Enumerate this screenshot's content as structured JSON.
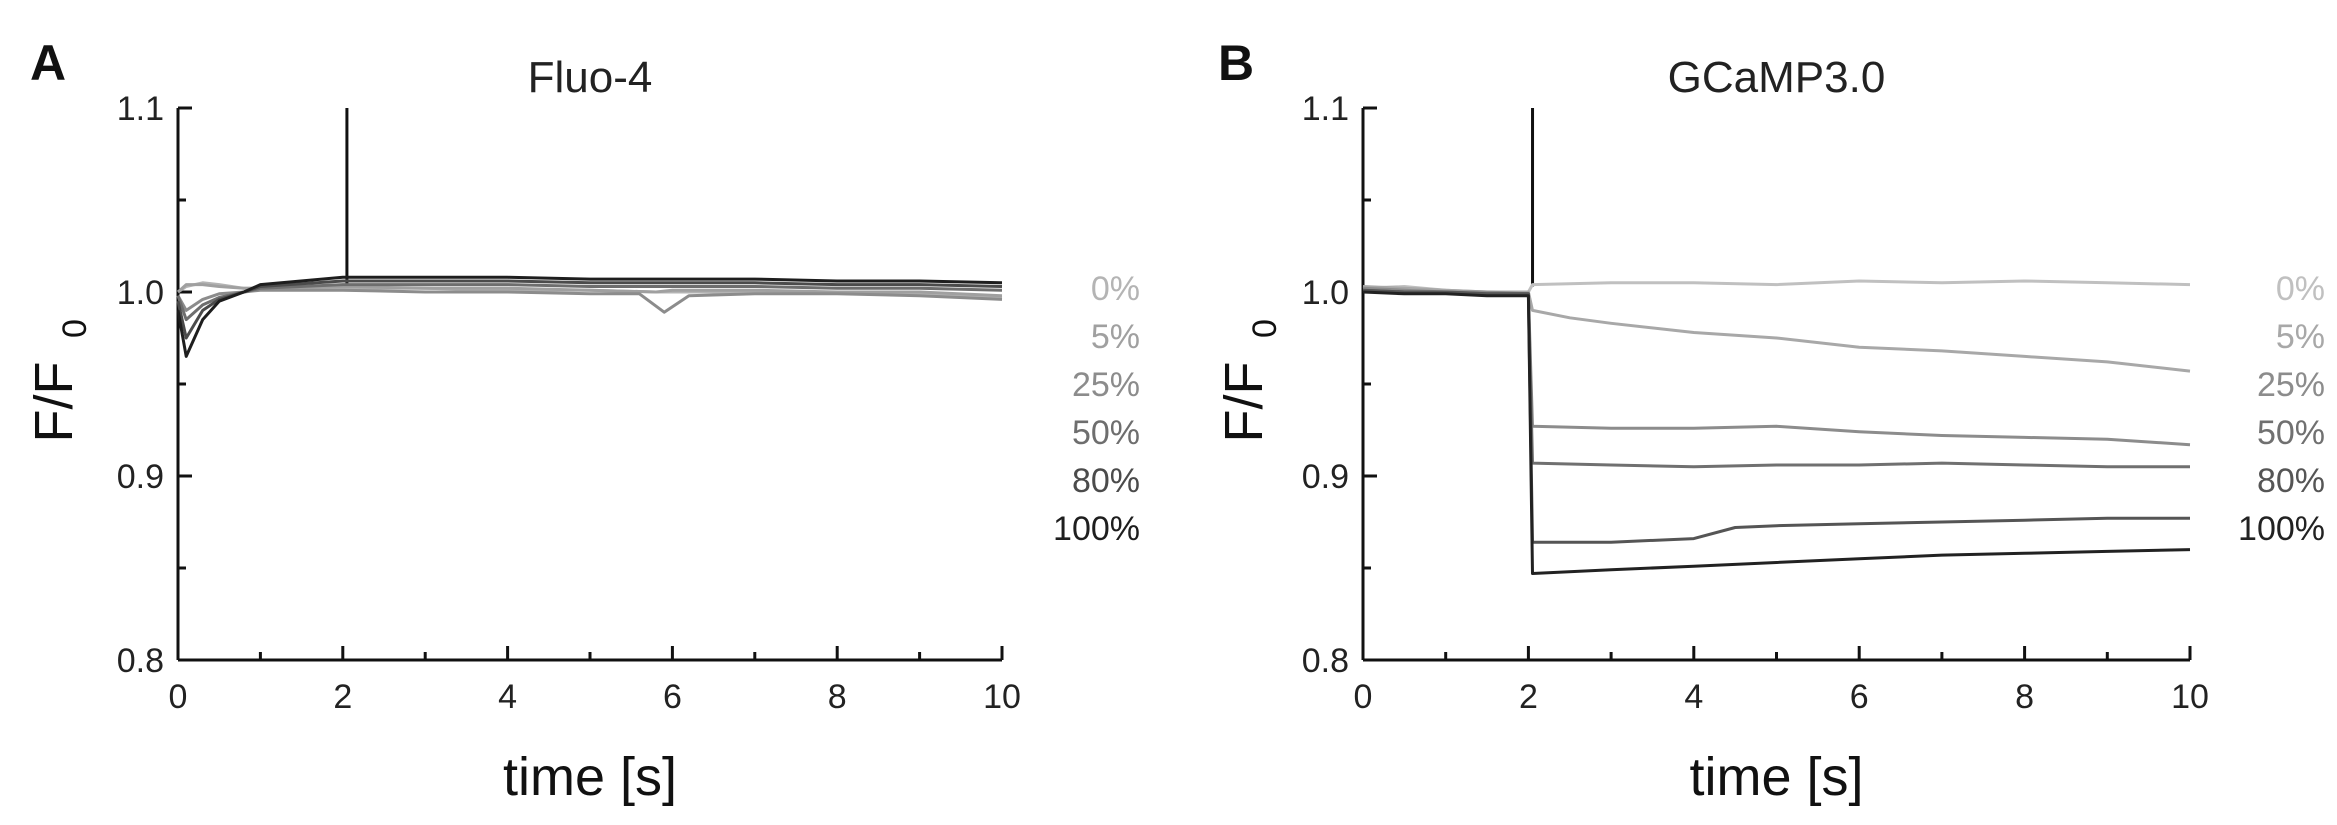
{
  "chart_data": [
    {
      "type": "line",
      "panel_label": "A",
      "title": "Fluo-4",
      "xlabel": "time [s]",
      "ylabel_main": "F/F",
      "ylabel_sub": "0",
      "xlim": [
        0,
        10
      ],
      "ylim": [
        0.8,
        1.1
      ],
      "xticks": [
        0,
        2,
        4,
        6,
        8,
        10
      ],
      "yticks": [
        0.8,
        0.9,
        1.0,
        1.1
      ],
      "xtick_labels": [
        "0",
        "2",
        "4",
        "6",
        "8",
        "10"
      ],
      "ytick_labels": [
        "0.8",
        "0.9",
        "1.0",
        "1.1"
      ],
      "grid": false,
      "legend_placement": "right",
      "stimulus": {
        "time": 2.05,
        "peak": 1.1
      },
      "series": [
        {
          "name": "0%",
          "color": "#b4b4b4",
          "x": [
            0.0,
            0.1,
            0.3,
            0.5,
            0.8,
            1.0,
            2.0,
            3.0,
            4.0,
            5.0,
            5.8,
            6.0,
            7.0,
            8.0,
            9.0,
            10.0
          ],
          "y": [
            1.0,
            1.003,
            1.005,
            1.004,
            1.002,
            1.002,
            1.002,
            1.002,
            1.001,
            1.001,
            1.0,
            1.0,
            1.0,
            1.0,
            0.999,
            0.997
          ]
        },
        {
          "name": "5%",
          "color": "#a0a0a0",
          "x": [
            0.0,
            0.1,
            0.3,
            0.5,
            0.8,
            1.0,
            2.0,
            3.0,
            4.0,
            5.0,
            5.8,
            6.0,
            7.0,
            8.0,
            9.0,
            10.0
          ],
          "y": [
            1.0,
            1.004,
            1.004,
            1.003,
            1.002,
            1.002,
            1.003,
            1.002,
            1.002,
            1.001,
            1.0,
            1.001,
            1.001,
            1.0,
            1.0,
            0.998
          ]
        },
        {
          "name": "25%",
          "color": "#8c8c8c",
          "x": [
            0.0,
            0.1,
            0.3,
            0.5,
            0.8,
            1.0,
            2.0,
            3.0,
            4.0,
            5.0,
            5.6,
            5.9,
            6.2,
            7.0,
            8.0,
            9.0,
            10.0
          ],
          "y": [
            0.998,
            0.99,
            0.996,
            0.999,
            1.0,
            1.001,
            1.001,
            1.0,
            1.0,
            0.999,
            0.999,
            0.989,
            0.998,
            0.999,
            0.999,
            0.998,
            0.996
          ]
        },
        {
          "name": "50%",
          "color": "#6e6e6e",
          "x": [
            0.0,
            0.1,
            0.3,
            0.5,
            0.8,
            1.0,
            2.0,
            3.0,
            4.0,
            5.0,
            6.0,
            7.0,
            8.0,
            9.0,
            10.0
          ],
          "y": [
            0.998,
            0.985,
            0.993,
            0.997,
            1.0,
            1.002,
            1.004,
            1.004,
            1.004,
            1.003,
            1.003,
            1.003,
            1.002,
            1.002,
            1.001
          ]
        },
        {
          "name": "80%",
          "color": "#4b4b4b",
          "x": [
            0.0,
            0.1,
            0.3,
            0.5,
            0.8,
            1.0,
            2.0,
            3.0,
            4.0,
            5.0,
            6.0,
            7.0,
            8.0,
            9.0,
            10.0
          ],
          "y": [
            0.995,
            0.975,
            0.99,
            0.996,
            1.0,
            1.003,
            1.006,
            1.006,
            1.006,
            1.005,
            1.005,
            1.005,
            1.004,
            1.004,
            1.003
          ]
        },
        {
          "name": "100%",
          "color": "#1e1e1e",
          "x": [
            0.0,
            0.1,
            0.3,
            0.5,
            0.8,
            1.0,
            2.0,
            3.0,
            4.0,
            5.0,
            6.0,
            7.0,
            8.0,
            9.0,
            10.0
          ],
          "y": [
            0.99,
            0.965,
            0.985,
            0.995,
            1.0,
            1.004,
            1.008,
            1.008,
            1.008,
            1.007,
            1.007,
            1.007,
            1.006,
            1.006,
            1.005
          ]
        }
      ]
    },
    {
      "type": "line",
      "panel_label": "B",
      "title": "GCaMP3.0",
      "xlabel": "time [s]",
      "ylabel_main": "F/F",
      "ylabel_sub": "0",
      "xlim": [
        0,
        10
      ],
      "ylim": [
        0.8,
        1.1
      ],
      "xticks": [
        0,
        2,
        4,
        6,
        8,
        10
      ],
      "yticks": [
        0.8,
        0.9,
        1.0,
        1.1
      ],
      "xtick_labels": [
        "0",
        "2",
        "4",
        "6",
        "8",
        "10"
      ],
      "ytick_labels": [
        "0.8",
        "0.9",
        "1.0",
        "1.1"
      ],
      "grid": false,
      "legend_placement": "right",
      "stimulus": {
        "time": 2.05,
        "peak": 1.1
      },
      "series": [
        {
          "name": "0%",
          "color": "#c0c0c0",
          "x": [
            0.0,
            0.5,
            1.0,
            1.5,
            2.0,
            2.05,
            3.0,
            4.0,
            5.0,
            6.0,
            7.0,
            8.0,
            9.0,
            10.0
          ],
          "y": [
            1.002,
            1.003,
            1.001,
            1.0,
            1.0,
            1.004,
            1.005,
            1.005,
            1.004,
            1.006,
            1.005,
            1.006,
            1.005,
            1.004
          ]
        },
        {
          "name": "5%",
          "color": "#a8a8a8",
          "x": [
            0.0,
            0.5,
            1.0,
            1.5,
            2.0,
            2.05,
            2.5,
            3.0,
            4.0,
            5.0,
            6.0,
            7.0,
            8.0,
            9.0,
            10.0
          ],
          "y": [
            1.003,
            1.002,
            1.001,
            1.0,
            1.0,
            0.99,
            0.986,
            0.983,
            0.978,
            0.975,
            0.97,
            0.968,
            0.965,
            0.962,
            0.957
          ]
        },
        {
          "name": "25%",
          "color": "#8c8c8c",
          "x": [
            0.0,
            0.5,
            1.0,
            1.5,
            2.0,
            2.05,
            3.0,
            4.0,
            5.0,
            6.0,
            7.0,
            8.0,
            9.0,
            10.0
          ],
          "y": [
            1.002,
            1.001,
            1.0,
            1.0,
            0.999,
            0.927,
            0.926,
            0.926,
            0.927,
            0.924,
            0.922,
            0.921,
            0.92,
            0.917
          ]
        },
        {
          "name": "50%",
          "color": "#707070",
          "x": [
            0.0,
            0.5,
            1.0,
            1.5,
            2.0,
            2.05,
            3.0,
            4.0,
            5.0,
            6.0,
            7.0,
            8.0,
            9.0,
            10.0
          ],
          "y": [
            1.001,
            1.0,
            1.0,
            0.999,
            0.999,
            0.907,
            0.906,
            0.905,
            0.906,
            0.906,
            0.907,
            0.906,
            0.905,
            0.905
          ]
        },
        {
          "name": "80%",
          "color": "#555555",
          "x": [
            0.0,
            0.5,
            1.0,
            1.5,
            2.0,
            2.05,
            3.0,
            4.0,
            4.5,
            5.0,
            6.0,
            7.0,
            8.0,
            9.0,
            10.0
          ],
          "y": [
            1.001,
            1.0,
            1.0,
            0.999,
            0.999,
            0.864,
            0.864,
            0.866,
            0.872,
            0.873,
            0.874,
            0.875,
            0.876,
            0.877,
            0.877
          ]
        },
        {
          "name": "100%",
          "color": "#222222",
          "x": [
            0.0,
            0.5,
            1.0,
            1.5,
            2.0,
            2.05,
            3.0,
            4.0,
            5.0,
            6.0,
            7.0,
            8.0,
            9.0,
            10.0
          ],
          "y": [
            1.0,
            0.999,
            0.999,
            0.998,
            0.998,
            0.847,
            0.849,
            0.851,
            0.853,
            0.855,
            0.857,
            0.858,
            0.859,
            0.86
          ]
        }
      ]
    }
  ]
}
